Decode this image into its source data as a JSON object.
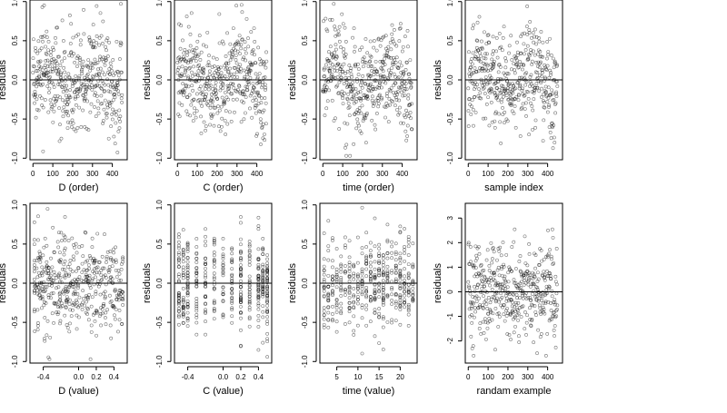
{
  "figure": {
    "background": "#ffffff",
    "point_color": "#000000",
    "point_style": "open-circle",
    "reference_line": "y = 0"
  },
  "chart_data": [
    {
      "type": "scatter",
      "xlabel": "D (order)",
      "ylabel": "residuals",
      "xlim": [
        -15,
        475
      ],
      "ylim": [
        -1.02,
        1.02
      ],
      "xticks": [
        0,
        100,
        200,
        300,
        400
      ],
      "yticks": [
        -1.0,
        -0.5,
        0.0,
        0.5,
        1.0
      ],
      "ytick_labels": [
        "-1.0",
        "-0.5",
        "0.0",
        "0.5",
        "1.0"
      ],
      "hline": 0,
      "points": {
        "generator": "order-noise",
        "n": 450,
        "ystd": 0.32
      }
    },
    {
      "type": "scatter",
      "xlabel": "C (order)",
      "ylabel": "residuals",
      "xlim": [
        -15,
        475
      ],
      "ylim": [
        -1.02,
        1.02
      ],
      "xticks": [
        0,
        100,
        200,
        300,
        400
      ],
      "yticks": [
        -1.0,
        -0.5,
        0.0,
        0.5,
        1.0
      ],
      "ytick_labels": [
        "-1.0",
        "-0.5",
        "0.0",
        "0.5",
        "1.0"
      ],
      "hline": 0,
      "points": {
        "generator": "order-noise",
        "n": 450,
        "ystd": 0.3
      }
    },
    {
      "type": "scatter",
      "xlabel": "time (order)",
      "ylabel": "residuals",
      "xlim": [
        -15,
        475
      ],
      "ylim": [
        -1.02,
        1.02
      ],
      "xticks": [
        0,
        100,
        200,
        300,
        400
      ],
      "yticks": [
        -1.0,
        -0.5,
        0.0,
        0.5,
        1.0
      ],
      "ytick_labels": [
        "-1.0",
        "-0.5",
        "0.0",
        "0.5",
        "1.0"
      ],
      "hline": 0,
      "points": {
        "generator": "order-noise",
        "n": 450,
        "ystd": 0.3
      }
    },
    {
      "type": "scatter",
      "xlabel": "sample index",
      "ylabel": "residuals",
      "xlim": [
        -15,
        475
      ],
      "ylim": [
        -1.02,
        1.02
      ],
      "xticks": [
        0,
        100,
        200,
        300,
        400
      ],
      "yticks": [
        -1.0,
        -0.5,
        0.0,
        0.5,
        1.0
      ],
      "ytick_labels": [
        "-1.0",
        "-0.5",
        "0.0",
        "0.5",
        "1.0"
      ],
      "hline": 0,
      "points": {
        "generator": "order-noise",
        "n": 450,
        "ystd": 0.3
      }
    },
    {
      "type": "scatter",
      "xlabel": "D (value)",
      "ylabel": "residuals",
      "xlim": [
        -0.55,
        0.55
      ],
      "ylim": [
        -1.02,
        1.02
      ],
      "xticks": [
        -0.4,
        0.0,
        0.2,
        0.4
      ],
      "xtick_labels": [
        "-0.4",
        "0.0",
        "0.2",
        "0.4"
      ],
      "yticks": [
        -1.0,
        -0.5,
        0.0,
        0.5,
        1.0
      ],
      "ytick_labels": [
        "-1.0",
        "-0.5",
        "0.0",
        "0.5",
        "1.0"
      ],
      "hline": 0,
      "points": {
        "generator": "value-noise",
        "n": 450,
        "ystd": 0.3
      }
    },
    {
      "type": "scatter",
      "xlabel": "C (value)",
      "ylabel": "residuals",
      "xlim": [
        -0.55,
        0.55
      ],
      "ylim": [
        -1.02,
        1.02
      ],
      "xticks": [
        -0.4,
        0.0,
        0.2,
        0.4
      ],
      "xtick_labels": [
        "-0.4",
        "0.0",
        "0.2",
        "0.4"
      ],
      "yticks": [
        -1.0,
        -0.5,
        0.0,
        0.5,
        1.0
      ],
      "ytick_labels": [
        "-1.0",
        "-0.5",
        "0.0",
        "0.5",
        "1.0"
      ],
      "hline": 0,
      "points": {
        "generator": "discrete-columns",
        "n": 450,
        "ystd": 0.3,
        "levels": [
          -0.5,
          -0.45,
          -0.4,
          -0.3,
          -0.2,
          -0.1,
          0.0,
          0.1,
          0.2,
          0.3,
          0.4,
          0.45,
          0.5
        ]
      }
    },
    {
      "type": "scatter",
      "xlabel": "time (value)",
      "ylabel": "residuals",
      "xlim": [
        1,
        24
      ],
      "ylim": [
        -1.02,
        1.02
      ],
      "xticks": [
        5,
        10,
        15,
        20
      ],
      "yticks": [
        -1.0,
        -0.5,
        0.0,
        0.5,
        1.0
      ],
      "ytick_labels": [
        "-1.0",
        "-0.5",
        "0.0",
        "0.5",
        "1.0"
      ],
      "hline": 0,
      "points": {
        "generator": "discrete-columns",
        "n": 450,
        "ystd": 0.3,
        "levels": [
          2,
          3,
          4,
          5,
          6,
          7,
          8,
          9,
          10,
          11,
          12,
          13,
          14,
          15,
          16,
          17,
          18,
          19,
          20,
          21,
          22,
          23
        ]
      }
    },
    {
      "type": "scatter",
      "xlabel": "randam example",
      "ylabel": "residuals",
      "xlim": [
        -15,
        475
      ],
      "ylim": [
        -2.9,
        3.6
      ],
      "xticks": [
        0,
        100,
        200,
        300,
        400
      ],
      "yticks": [
        -2,
        -1,
        0,
        1,
        2,
        3
      ],
      "hline": 0,
      "points": {
        "generator": "normal",
        "n": 450,
        "ystd": 1.0
      }
    }
  ]
}
